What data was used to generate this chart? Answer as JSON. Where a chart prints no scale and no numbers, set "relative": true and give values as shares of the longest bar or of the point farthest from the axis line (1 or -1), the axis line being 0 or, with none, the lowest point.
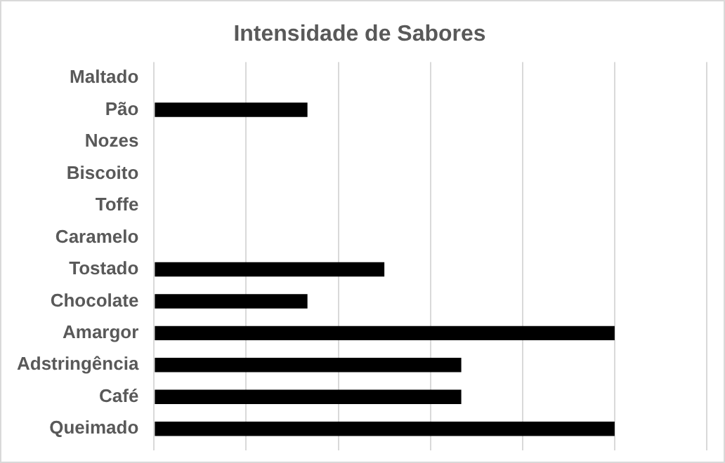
{
  "chart_data": {
    "type": "bar",
    "orientation": "horizontal",
    "relative": true,
    "title": "Intensidade de Sabores",
    "categories": [
      "Maltado",
      "Pão",
      "Nozes",
      "Biscoito",
      "Toffe",
      "Caramelo",
      "Tostado",
      "Chocolate",
      "Amargor",
      "Adstringência",
      "Café",
      "Queimado"
    ],
    "values": [
      0,
      0.333,
      0,
      0,
      0,
      0,
      0.5,
      0.333,
      1,
      0.667,
      0.667,
      1
    ],
    "color": "#000000",
    "grid": "x",
    "legend": false
  }
}
